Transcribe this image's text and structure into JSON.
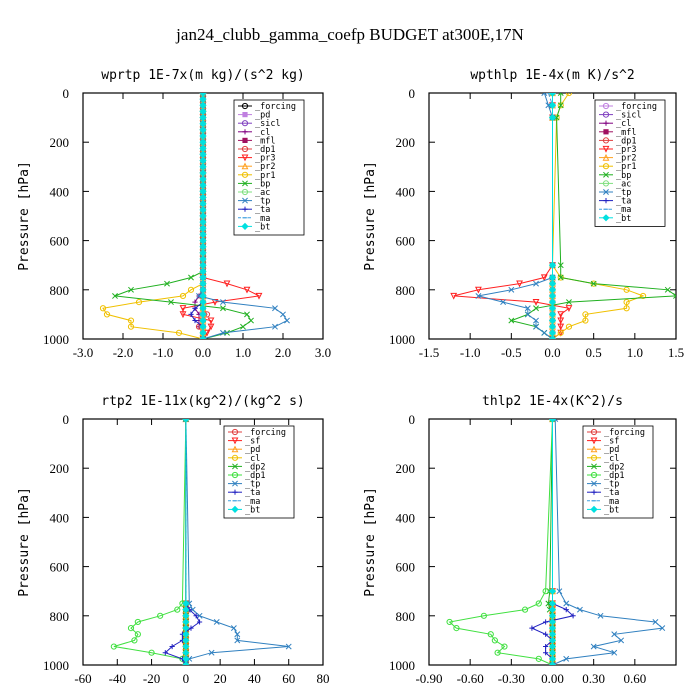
{
  "figure": {
    "title": "jan24_clubb_gamma_coefp  BUDGET at300E,17N"
  },
  "chart_data": [
    {
      "type": "line",
      "title": "wprtp  1E-7x(m kg)/(s^2 kg)",
      "xlabel": "",
      "ylabel": "Pressure [hPa]",
      "xlim": [
        -3.0,
        3.0
      ],
      "ylim": [
        1000,
        0
      ],
      "xticks": [
        "-3.0",
        "-2.0",
        "-1.0",
        "0.0",
        "1.0",
        "2.0",
        "3.0"
      ],
      "yticks": [
        "0",
        "200",
        "400",
        "600",
        "800",
        "1000"
      ],
      "legend_position": "top-right",
      "y": [
        750,
        775,
        800,
        825,
        850,
        875,
        900,
        925,
        950,
        975,
        1000
      ],
      "series": [
        {
          "name": "_forcing",
          "color": "#000000",
          "marker": "o",
          "values": [
            0,
            0,
            0,
            0,
            0,
            0,
            0,
            0,
            0,
            0,
            0
          ]
        },
        {
          "name": "_pd",
          "color": "#c080e0",
          "marker": "s",
          "values": [
            0,
            0,
            0,
            0,
            0,
            0,
            0,
            0,
            0,
            0,
            0
          ]
        },
        {
          "name": "_sicl",
          "color": "#8040c0",
          "marker": "o",
          "values": [
            0,
            0,
            0,
            0,
            0,
            0,
            0,
            0,
            0,
            0,
            0
          ]
        },
        {
          "name": "_cl",
          "color": "#800080",
          "marker": "+",
          "values": [
            0,
            0,
            0,
            -0.1,
            -0.2,
            -0.2,
            -0.1,
            -0.1,
            -0.1,
            0,
            0
          ]
        },
        {
          "name": "_mfl",
          "color": "#a01060",
          "marker": "s",
          "values": [
            0,
            0,
            0,
            0,
            0,
            0,
            0,
            0,
            0,
            0,
            0
          ]
        },
        {
          "name": "_dp1",
          "color": "#e04040",
          "marker": "o",
          "values": [
            0,
            0,
            0,
            0,
            0,
            0,
            0.1,
            0,
            -0.1,
            0,
            0
          ]
        },
        {
          "name": "_pr3",
          "color": "#ff2020",
          "marker": "v",
          "values": [
            0,
            0.6,
            1.1,
            1.4,
            0.3,
            -0.5,
            -0.5,
            0.2,
            0.2,
            0.1,
            0
          ]
        },
        {
          "name": "_pr2",
          "color": "#ffa020",
          "marker": "^",
          "values": [
            0,
            0,
            0,
            0,
            0,
            0,
            0,
            0,
            0,
            0,
            0
          ]
        },
        {
          "name": "_pr1",
          "color": "#f0c000",
          "marker": "o",
          "values": [
            0,
            0,
            -0.3,
            -0.5,
            -1.6,
            -2.5,
            -2.4,
            -1.8,
            -1.8,
            -0.6,
            0
          ]
        },
        {
          "name": "_bp",
          "color": "#20b020",
          "marker": "x",
          "values": [
            -0.3,
            -0.9,
            -1.8,
            -2.2,
            -0.8,
            0.5,
            1.1,
            1.2,
            1.0,
            0.6,
            0
          ]
        },
        {
          "name": "_ac",
          "color": "#80e080",
          "marker": "o",
          "values": [
            0,
            0,
            0,
            0,
            0,
            0,
            0,
            0,
            0,
            0,
            0
          ]
        },
        {
          "name": "_tp",
          "color": "#3080c0",
          "marker": "x",
          "values": [
            0,
            0,
            0,
            -0.1,
            0.5,
            1.8,
            2.0,
            2.1,
            1.8,
            0.5,
            0
          ]
        },
        {
          "name": "_ta",
          "color": "#2020c0",
          "marker": "+",
          "values": [
            0,
            0,
            0,
            0,
            0,
            -0.2,
            -0.3,
            -0.2,
            0,
            0,
            0
          ]
        },
        {
          "name": "_ma",
          "color": "#40a0e0",
          "marker": "-",
          "values": [
            0,
            0,
            0,
            0,
            0,
            0,
            0,
            0,
            0,
            0,
            0
          ]
        },
        {
          "name": "_bt",
          "color": "#00e0e0",
          "marker": "D",
          "values": [
            0,
            0,
            0,
            0,
            0,
            0,
            0,
            0,
            0,
            0,
            0
          ]
        }
      ]
    },
    {
      "type": "line",
      "title": "wpthlp  1E-4x(m K)/s^2",
      "xlabel": "",
      "ylabel": "Pressure [hPa]",
      "xlim": [
        -1.5,
        1.5
      ],
      "ylim": [
        1000,
        0
      ],
      "xticks": [
        "-1.5",
        "-1.0",
        "-0.5",
        "0.0",
        "0.5",
        "1.0",
        "1.5"
      ],
      "yticks": [
        "0",
        "200",
        "400",
        "600",
        "800",
        "1000"
      ],
      "legend_position": "top-right",
      "y": [
        0,
        50,
        100,
        700,
        750,
        775,
        800,
        825,
        850,
        875,
        900,
        925,
        950,
        975,
        1000
      ],
      "series": [
        {
          "name": "_forcing",
          "color": "#c080e0",
          "marker": "o",
          "values": [
            0,
            0,
            0,
            0,
            0,
            0,
            0,
            0,
            0,
            0,
            0,
            0,
            0,
            0,
            0
          ]
        },
        {
          "name": "_sicl",
          "color": "#8040c0",
          "marker": "o",
          "values": [
            0,
            0,
            0,
            0,
            0,
            0,
            0,
            0,
            0,
            0,
            0,
            0,
            0,
            0,
            0
          ]
        },
        {
          "name": "_cl",
          "color": "#800080",
          "marker": "+",
          "values": [
            0,
            0,
            0,
            0,
            0,
            0,
            0,
            0,
            0,
            0,
            0,
            0,
            0,
            0,
            0
          ]
        },
        {
          "name": "_mfl",
          "color": "#a01060",
          "marker": "s",
          "values": [
            0,
            0,
            0,
            0,
            0,
            0,
            0,
            0,
            0,
            0,
            0,
            0,
            0,
            0,
            0
          ]
        },
        {
          "name": "_dp1",
          "color": "#e04040",
          "marker": "o",
          "values": [
            0,
            0,
            0,
            0,
            0,
            0,
            0,
            0,
            0,
            0,
            0,
            0,
            0,
            0,
            0
          ]
        },
        {
          "name": "_pr3",
          "color": "#ff2020",
          "marker": "v",
          "values": [
            0,
            0,
            0,
            0,
            -0.1,
            -0.4,
            -0.9,
            -1.2,
            -0.2,
            0.2,
            0.1,
            0.1,
            0.1,
            0.1,
            0
          ]
        },
        {
          "name": "_pr2",
          "color": "#ffa020",
          "marker": "^",
          "values": [
            0,
            0,
            0,
            0,
            0,
            0,
            0,
            0,
            0,
            0,
            0,
            0,
            0,
            0,
            0
          ]
        },
        {
          "name": "_pr1",
          "color": "#f0c000",
          "marker": "o",
          "values": [
            0.2,
            0.1,
            0.05,
            0,
            0.1,
            0.5,
            0.9,
            1.1,
            0.9,
            0.9,
            0.4,
            0.4,
            0.2,
            0.1,
            0
          ]
        },
        {
          "name": "_bp",
          "color": "#20b020",
          "marker": "x",
          "values": [
            0.1,
            0.1,
            0.05,
            0.1,
            0.1,
            0.5,
            1.4,
            1.5,
            0.2,
            -0.2,
            -0.3,
            -0.5,
            -0.2,
            -0.1,
            0
          ]
        },
        {
          "name": "_ac",
          "color": "#80e080",
          "marker": "o",
          "values": [
            0,
            0,
            0,
            0,
            0,
            0,
            0,
            0,
            0,
            0,
            0,
            0,
            0,
            0,
            0
          ]
        },
        {
          "name": "_tp",
          "color": "#3080c0",
          "marker": "x",
          "values": [
            -0.1,
            -0.05,
            0,
            0,
            0,
            -0.2,
            -0.5,
            -0.9,
            -0.6,
            -0.3,
            -0.3,
            -0.2,
            -0.2,
            -0.1,
            0
          ]
        },
        {
          "name": "_ta",
          "color": "#2020c0",
          "marker": "+",
          "values": [
            0,
            0,
            0,
            0,
            0,
            0,
            0,
            0,
            0,
            0,
            0,
            0,
            0,
            0,
            0
          ]
        },
        {
          "name": "_ma",
          "color": "#40a0e0",
          "marker": "-",
          "values": [
            -0.05,
            0,
            0,
            0,
            0,
            0,
            0,
            0,
            0,
            0,
            0,
            0,
            0,
            0,
            0
          ]
        },
        {
          "name": "_bt",
          "color": "#00e0e0",
          "marker": "D",
          "values": [
            0,
            0,
            0,
            0,
            0,
            0,
            0,
            0,
            0,
            0,
            0,
            0,
            0,
            0,
            0
          ]
        }
      ]
    },
    {
      "type": "line",
      "title": "rtp2  1E-11x(kg^2)/(kg^2 s)",
      "xlabel": "",
      "ylabel": "Pressure [hPa]",
      "xlim": [
        -60,
        80
      ],
      "ylim": [
        1000,
        0
      ],
      "xticks": [
        "-60",
        "-40",
        "-20",
        "0",
        "20",
        "40",
        "60",
        "80"
      ],
      "yticks": [
        "0",
        "200",
        "400",
        "600",
        "800",
        "1000"
      ],
      "legend_position": "top-right",
      "y": [
        0,
        750,
        775,
        800,
        825,
        850,
        875,
        900,
        925,
        950,
        975,
        1000
      ],
      "series": [
        {
          "name": "_forcing",
          "color": "#e04040",
          "marker": "o",
          "values": [
            0,
            0,
            0,
            0,
            0,
            0,
            0,
            0,
            0,
            0,
            0,
            0
          ]
        },
        {
          "name": "_sf",
          "color": "#ff2020",
          "marker": "v",
          "values": [
            0,
            0,
            0,
            0,
            0,
            0,
            0,
            0,
            0,
            0,
            0,
            0
          ]
        },
        {
          "name": "_pd",
          "color": "#ffa020",
          "marker": "^",
          "values": [
            0,
            0,
            0,
            0,
            0,
            0,
            0,
            0,
            0,
            0,
            0,
            0
          ]
        },
        {
          "name": "_cl",
          "color": "#f0c000",
          "marker": "o",
          "values": [
            0,
            0,
            0,
            0,
            0,
            0,
            0,
            0,
            0,
            0,
            0,
            0
          ]
        },
        {
          "name": "_dp2",
          "color": "#20b020",
          "marker": "x",
          "values": [
            0,
            0,
            0,
            0,
            0,
            0,
            0,
            0,
            0,
            0,
            0,
            0
          ]
        },
        {
          "name": "_dp1",
          "color": "#40e040",
          "marker": "o",
          "values": [
            0,
            -2,
            -5,
            -15,
            -28,
            -32,
            -28,
            -30,
            -42,
            -20,
            -2,
            0
          ]
        },
        {
          "name": "_tp",
          "color": "#3080c0",
          "marker": "x",
          "values": [
            0,
            2,
            4,
            8,
            18,
            28,
            30,
            30,
            60,
            15,
            2,
            0
          ]
        },
        {
          "name": "_ta",
          "color": "#2020c0",
          "marker": "+",
          "values": [
            0,
            0,
            2,
            6,
            8,
            3,
            -2,
            -2,
            -8,
            -12,
            -2,
            0
          ]
        },
        {
          "name": "_ma",
          "color": "#40a0e0",
          "marker": "-",
          "values": [
            0,
            0,
            0,
            0,
            0,
            0,
            0,
            0,
            0,
            0,
            0,
            0
          ]
        },
        {
          "name": "_bt",
          "color": "#00e0e0",
          "marker": "D",
          "values": [
            0,
            0,
            0,
            0,
            0,
            0,
            0,
            0,
            0,
            0,
            0,
            0
          ]
        }
      ]
    },
    {
      "type": "line",
      "title": "thlp2  1E-4x(K^2)/s",
      "xlabel": "",
      "ylabel": "Pressure [hPa]",
      "xlim": [
        -0.9,
        0.9
      ],
      "ylim": [
        1000,
        0
      ],
      "xticks": [
        "-0.90",
        "-0.60",
        "-0.30",
        "0.00",
        "0.30",
        "0.60"
      ],
      "yticks": [
        "0",
        "200",
        "400",
        "600",
        "800",
        "1000"
      ],
      "legend_position": "top-right",
      "y": [
        0,
        700,
        750,
        775,
        800,
        825,
        850,
        875,
        900,
        925,
        950,
        975,
        1000
      ],
      "series": [
        {
          "name": "_forcing",
          "color": "#e04040",
          "marker": "o",
          "values": [
            0,
            0,
            0,
            0,
            0,
            0,
            0,
            0,
            0,
            0,
            0,
            0,
            0
          ]
        },
        {
          "name": "_sf",
          "color": "#ff2020",
          "marker": "v",
          "values": [
            0,
            0,
            0,
            0,
            0,
            0,
            0,
            0,
            0,
            0,
            0,
            0,
            0
          ]
        },
        {
          "name": "_pd",
          "color": "#ffa020",
          "marker": "^",
          "values": [
            0,
            0,
            0,
            0,
            0,
            0,
            0,
            0,
            0,
            0,
            0,
            0,
            0
          ]
        },
        {
          "name": "_cl",
          "color": "#f0c000",
          "marker": "o",
          "values": [
            0,
            0,
            0,
            0,
            0,
            0,
            0,
            0,
            0,
            0,
            0,
            0,
            0
          ]
        },
        {
          "name": "_dp2",
          "color": "#20b020",
          "marker": "x",
          "values": [
            0,
            -0.02,
            -0.03,
            -0.02,
            0,
            0,
            0,
            0,
            0,
            0,
            0,
            0,
            0
          ]
        },
        {
          "name": "_dp1",
          "color": "#40e040",
          "marker": "o",
          "values": [
            0,
            -0.05,
            -0.1,
            -0.2,
            -0.5,
            -0.75,
            -0.7,
            -0.45,
            -0.42,
            -0.35,
            -0.4,
            -0.1,
            0
          ]
        },
        {
          "name": "_tp",
          "color": "#3080c0",
          "marker": "x",
          "values": [
            0.02,
            0.05,
            0.1,
            0.2,
            0.35,
            0.75,
            0.8,
            0.45,
            0.5,
            0.3,
            0.45,
            0.1,
            0
          ]
        },
        {
          "name": "_ta",
          "color": "#2020c0",
          "marker": "+",
          "values": [
            0,
            0,
            0,
            0.1,
            0.15,
            -0.05,
            -0.15,
            -0.05,
            0,
            -0.05,
            -0.05,
            0,
            0
          ]
        },
        {
          "name": "_ma",
          "color": "#40a0e0",
          "marker": "-",
          "values": [
            0,
            0,
            0,
            0,
            0,
            0,
            0,
            0,
            0,
            0,
            0,
            0,
            0
          ]
        },
        {
          "name": "_bt",
          "color": "#00e0e0",
          "marker": "D",
          "values": [
            0,
            0,
            0,
            0,
            0,
            0,
            0,
            0,
            0,
            0,
            0,
            0,
            0
          ]
        }
      ]
    }
  ]
}
